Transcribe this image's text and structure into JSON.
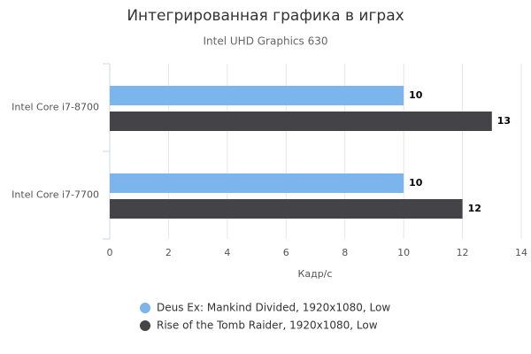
{
  "chart_data": {
    "type": "bar",
    "orientation": "horizontal",
    "title": "Интегрированная графика в играх",
    "subtitle": "Intel UHD Graphics 630",
    "x_label": "Кадр/с",
    "categories": [
      "Intel Core i7-8700",
      "Intel Core i7-7700"
    ],
    "series": [
      {
        "name": "Deus Ex: Mankind Divided, 1920x1080, Low",
        "color": "#7cb5ec",
        "values": [
          10,
          10
        ]
      },
      {
        "name": "Rise of the Tomb Raider, 1920x1080, Low",
        "color": "#434348",
        "values": [
          13,
          12
        ]
      }
    ],
    "xlim": [
      0,
      14
    ],
    "xticks": [
      0,
      2,
      4,
      6,
      8,
      10,
      12,
      14
    ],
    "grid": true,
    "legend": "bottom"
  }
}
